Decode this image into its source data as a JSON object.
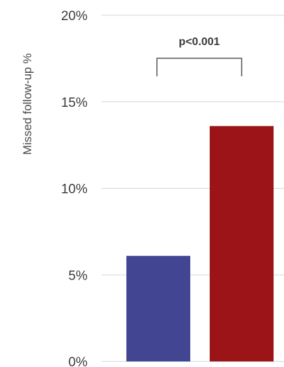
{
  "chart_data": {
    "type": "bar",
    "title": "",
    "xlabel": "",
    "ylabel": "Missed follow-up %",
    "ylim": [
      0,
      20
    ],
    "yticks": [
      0,
      5,
      10,
      15,
      20
    ],
    "ytick_labels": [
      "0%",
      "5%",
      "10%",
      "15%",
      "20%"
    ],
    "grid": true,
    "values": [
      6.1,
      13.6
    ],
    "bar_colors": [
      "#414592",
      "#9c1418"
    ],
    "annotation": "p<0.001"
  }
}
